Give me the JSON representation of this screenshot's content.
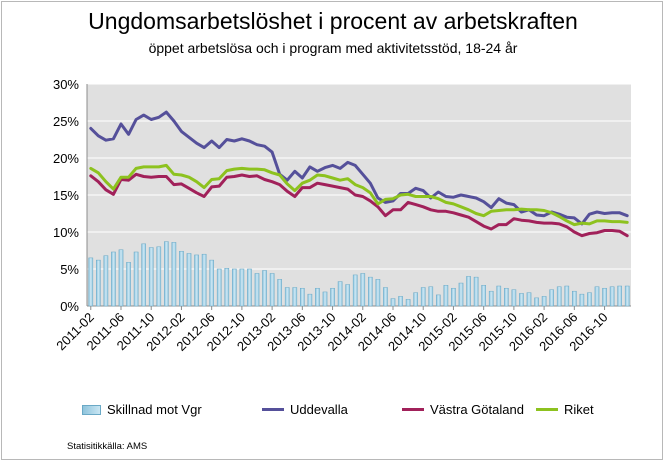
{
  "colors": {
    "bars_fill": "#a6d0e6",
    "bars_stroke": "#6aa9c6",
    "uddevalla": "#55509a",
    "vastra_gotaland": "#a1215a",
    "riket": "#8dc21f",
    "plot_bg": "#e0e0e0",
    "grid": "#ffffff"
  },
  "source": "Statisitikkälla: AMS",
  "chart_data": {
    "type": "line",
    "title": "Ungdomsarbetslöshet i procent av arbetskraften",
    "subtitle": "öppet arbetslösa och i program med aktivitetsstöd, 18-24 år",
    "ylim": [
      0,
      30
    ],
    "yticks": [
      "0%",
      "5%",
      "10%",
      "15%",
      "20%",
      "25%",
      "30%"
    ],
    "ytick_values": [
      0,
      5,
      10,
      15,
      20,
      25,
      30
    ],
    "grid": true,
    "legend_position": "bottom",
    "x_tick_labels": [
      "2011-02",
      "2011-06",
      "2011-10",
      "2012-02",
      "2012-06",
      "2012-10",
      "2013-02",
      "2013-06",
      "2013-10",
      "2014-02",
      "2014-06",
      "2014-10",
      "2015-02",
      "2015-06",
      "2015-10",
      "2016-02",
      "2016-06",
      "2016-10"
    ],
    "x": [
      "2011-02",
      "2011-03",
      "2011-04",
      "2011-05",
      "2011-06",
      "2011-07",
      "2011-08",
      "2011-09",
      "2011-10",
      "2011-11",
      "2011-12",
      "2012-01",
      "2012-02",
      "2012-03",
      "2012-04",
      "2012-05",
      "2012-06",
      "2012-07",
      "2012-08",
      "2012-09",
      "2012-10",
      "2012-11",
      "2012-12",
      "2013-01",
      "2013-02",
      "2013-03",
      "2013-04",
      "2013-05",
      "2013-06",
      "2013-07",
      "2013-08",
      "2013-09",
      "2013-10",
      "2013-11",
      "2013-12",
      "2014-01",
      "2014-02",
      "2014-03",
      "2014-04",
      "2014-05",
      "2014-06",
      "2014-07",
      "2014-08",
      "2014-09",
      "2014-10",
      "2014-11",
      "2014-12",
      "2015-01",
      "2015-02",
      "2015-03",
      "2015-04",
      "2015-05",
      "2015-06",
      "2015-07",
      "2015-08",
      "2015-09",
      "2015-10",
      "2015-11",
      "2015-12",
      "2016-01",
      "2016-02",
      "2016-03",
      "2016-04",
      "2016-05",
      "2016-06",
      "2016-07",
      "2016-08",
      "2016-09",
      "2016-10",
      "2016-11",
      "2016-12",
      "2017-01"
    ],
    "series": [
      {
        "name": "Skillnad mot Vgr",
        "type": "bar",
        "values": [
          6.5,
          6.2,
          6.8,
          7.3,
          7.6,
          5.9,
          7.3,
          8.4,
          7.9,
          8.0,
          8.7,
          8.6,
          7.4,
          7.1,
          6.9,
          7.0,
          6.2,
          5.0,
          5.1,
          5.0,
          5.0,
          5.0,
          4.4,
          4.8,
          4.4,
          3.6,
          2.5,
          2.5,
          2.4,
          1.6,
          2.4,
          1.9,
          2.4,
          3.3,
          2.9,
          4.2,
          4.4,
          3.9,
          3.6,
          2.5,
          1.0,
          1.3,
          0.9,
          1.8,
          2.5,
          2.6,
          1.5,
          2.8,
          2.4,
          3.1,
          4.0,
          3.9,
          2.8,
          2.0,
          2.7,
          2.4,
          2.2,
          1.7,
          1.8,
          1.1,
          1.3,
          2.2,
          2.6,
          2.7,
          2.0,
          1.6,
          1.8,
          2.6,
          2.4,
          2.6,
          2.7,
          2.7
        ]
      },
      {
        "name": "Uddevalla",
        "type": "line",
        "values": [
          24.0,
          23.0,
          22.4,
          22.6,
          24.6,
          23.2,
          25.2,
          25.8,
          25.2,
          25.5,
          26.2,
          25.0,
          23.6,
          22.8,
          22.0,
          21.4,
          22.3,
          21.4,
          22.5,
          22.3,
          22.6,
          22.3,
          21.8,
          21.6,
          20.8,
          17.8,
          17.0,
          18.2,
          17.3,
          18.8,
          18.2,
          18.7,
          19.0,
          18.6,
          19.4,
          19.0,
          17.8,
          16.6,
          14.6,
          14.0,
          14.2,
          15.2,
          15.2,
          15.9,
          15.6,
          14.6,
          15.4,
          14.8,
          14.7,
          15.0,
          14.8,
          14.6,
          14.1,
          13.3,
          14.5,
          13.9,
          13.7,
          12.7,
          13.0,
          12.3,
          12.2,
          12.7,
          12.4,
          12.0,
          11.9,
          11.1,
          12.4,
          12.7,
          12.5,
          12.6,
          12.6,
          12.2
        ]
      },
      {
        "name": "Västra Götaland",
        "type": "line",
        "values": [
          17.6,
          16.8,
          15.7,
          15.1,
          17.1,
          17.0,
          17.8,
          17.5,
          17.4,
          17.5,
          17.5,
          16.4,
          16.5,
          15.9,
          15.3,
          14.8,
          16.1,
          16.2,
          17.4,
          17.5,
          17.7,
          17.5,
          17.6,
          17.1,
          16.8,
          16.4,
          15.5,
          14.8,
          16.0,
          16.0,
          16.6,
          16.4,
          16.2,
          16.0,
          15.8,
          15.0,
          14.8,
          14.2,
          13.4,
          12.2,
          13.0,
          13.0,
          14.0,
          13.7,
          13.4,
          13.0,
          12.8,
          12.8,
          12.6,
          12.3,
          12.0,
          11.4,
          10.8,
          10.4,
          11.0,
          11.0,
          11.8,
          11.6,
          11.5,
          11.3,
          11.2,
          11.2,
          11.1,
          10.7,
          10.0,
          9.5,
          9.8,
          9.9,
          10.2,
          10.2,
          10.1,
          9.5
        ]
      },
      {
        "name": "Riket",
        "type": "line",
        "values": [
          18.6,
          18.0,
          16.8,
          15.8,
          17.4,
          17.4,
          18.6,
          18.8,
          18.8,
          18.8,
          19.0,
          17.8,
          17.7,
          17.4,
          16.8,
          16.0,
          17.1,
          17.2,
          18.3,
          18.5,
          18.6,
          18.5,
          18.5,
          18.4,
          18.0,
          17.7,
          16.5,
          15.6,
          16.6,
          17.0,
          17.7,
          17.6,
          17.3,
          17.0,
          17.2,
          16.4,
          16.0,
          15.3,
          13.8,
          14.4,
          14.5,
          15.0,
          15.1,
          14.8,
          14.8,
          14.8,
          14.5,
          14.0,
          13.8,
          13.4,
          13.0,
          12.5,
          12.2,
          12.8,
          12.9,
          13.0,
          13.0,
          13.1,
          13.0,
          13.0,
          12.9,
          12.6,
          12.1,
          11.5,
          11.0,
          11.2,
          11.1,
          11.5,
          11.5,
          11.4,
          11.4,
          11.3
        ]
      }
    ]
  },
  "legend": [
    {
      "label": "Skillnad mot Vgr",
      "kind": "bar"
    },
    {
      "label": "Uddevalla",
      "kind": "line",
      "color": "#55509a"
    },
    {
      "label": "Västra Götaland",
      "kind": "line",
      "color": "#a1215a"
    },
    {
      "label": "Riket",
      "kind": "line",
      "color": "#8dc21f"
    }
  ]
}
